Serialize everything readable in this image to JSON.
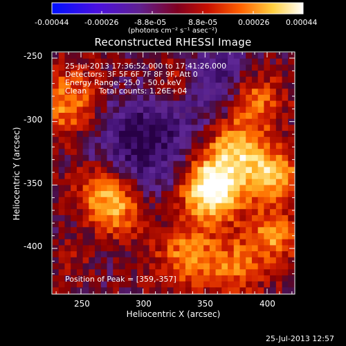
{
  "colorbar": {
    "ticks": [
      "-0.00044",
      "-0.00026",
      "-8.8e-05",
      "8.8e-05",
      "0.00026",
      "0.00044"
    ],
    "unit_label": "(photons cm⁻² s⁻¹ asec⁻²)",
    "colors": [
      "#0010ff",
      "#5a00c8",
      "#6a2080",
      "#8a0000",
      "#d02000",
      "#ff8000",
      "#ffe040",
      "#ffffff"
    ]
  },
  "title": "Reconstructed RHESSI Image",
  "info": {
    "line1": "25-Jul-2013 17:36:52.000 to 17:41:26.000",
    "line2": "Detectors: 3F 5F 6F 7F 8F 9F, Att 0",
    "line3": "Energy Range: 25.0 - 50.0 keV",
    "line4": "Clean     Total counts: 1.26E+04"
  },
  "peak_label": "Position of Peak = [359,-357]",
  "xaxis": {
    "label": "Heliocentric X (arcsec)",
    "ticks": [
      "250",
      "300",
      "350",
      "400"
    ]
  },
  "yaxis": {
    "label": "Heliocentric Y (arcsec)",
    "ticks": [
      "-250",
      "-300",
      "-350",
      "-400"
    ]
  },
  "footer_timestamp": "25-Jul-2013 12:57",
  "image_data": {
    "x_range": [
      227,
      420
    ],
    "y_range": [
      -247,
      -420
    ],
    "peak": [
      359,
      -357
    ]
  }
}
